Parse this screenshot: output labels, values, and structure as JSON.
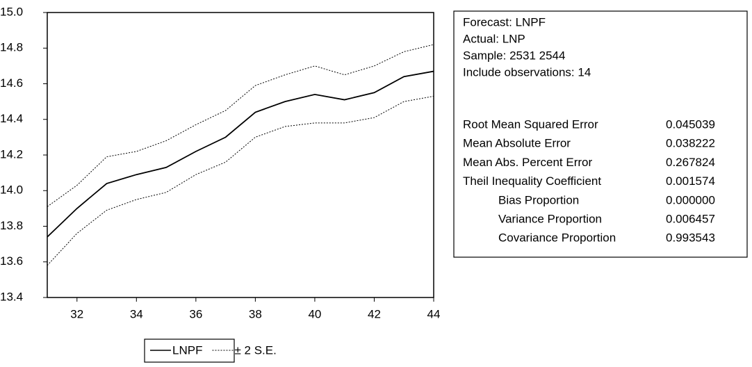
{
  "chart_data": {
    "type": "line",
    "x": [
      31,
      32,
      33,
      34,
      35,
      36,
      37,
      38,
      39,
      40,
      41,
      42,
      43,
      44
    ],
    "series": [
      {
        "name": "LNPF",
        "color": "#000000",
        "style": "solid",
        "values": [
          13.74,
          13.9,
          14.04,
          14.09,
          14.13,
          14.22,
          14.3,
          14.44,
          14.5,
          14.54,
          14.51,
          14.55,
          14.64,
          14.67
        ]
      },
      {
        "name": "± 2 S.E.",
        "color": "#000000",
        "style": "dotted",
        "values": [
          13.91,
          14.03,
          14.19,
          14.22,
          14.28,
          14.37,
          14.45,
          14.59,
          14.65,
          14.7,
          14.65,
          14.7,
          14.78,
          14.82
        ],
        "values_lower": [
          13.58,
          13.76,
          13.89,
          13.95,
          13.99,
          14.09,
          14.16,
          14.3,
          14.36,
          14.38,
          14.38,
          14.41,
          14.5,
          14.53
        ]
      }
    ],
    "xlim": [
      31,
      44
    ],
    "xticks": [
      32,
      34,
      36,
      38,
      40,
      42,
      44
    ],
    "ylim": [
      13.4,
      15.0
    ],
    "yticks": [
      13.4,
      13.6,
      13.8,
      {
        "value": 14.0,
        "label": "14.0"
      },
      14.2,
      14.4,
      14.6,
      14.8,
      {
        "value": 15.0,
        "label": "15.0"
      }
    ],
    "grid": false,
    "legend": "bottom",
    "stats": {
      "header": [
        "Forecast: LNPF",
        "Actual: LNP",
        "Sample: 2531 2544",
        "Include observations: 14"
      ],
      "rows": [
        {
          "label": "Root Mean Squared Error",
          "value": "0.045039",
          "indent": false
        },
        {
          "label": "Mean Absolute Error",
          "value": "0.038222",
          "indent": false
        },
        {
          "label": "Mean Abs. Percent Error",
          "value": "0.267824",
          "indent": false
        },
        {
          "label": "Theil Inequality Coefficient",
          "value": "0.001574",
          "indent": false
        },
        {
          "label": "Bias Proportion",
          "value": "0.000000",
          "indent": true
        },
        {
          "label": "Variance Proportion",
          "value": "0.006457",
          "indent": true
        },
        {
          "label": "Covariance Proportion",
          "value": "0.993543",
          "indent": true
        }
      ]
    }
  }
}
